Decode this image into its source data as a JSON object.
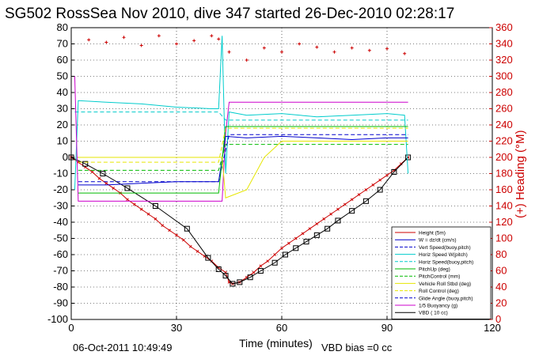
{
  "chart_data": {
    "type": "line",
    "title": "SG502 RossSea Nov 2010, dive 347 started 26-Dec-2010 02:28:17",
    "xlabel": "Time (minutes)",
    "ylabel": "",
    "ylabel_right": "(+) Heading (°M)",
    "xlim": [
      0,
      120
    ],
    "ylim": [
      -100,
      80
    ],
    "ylim_right": [
      0,
      360
    ],
    "xticks": [
      0,
      30,
      60,
      90,
      120
    ],
    "yticks": [
      -100,
      -90,
      -80,
      -70,
      -60,
      -50,
      -40,
      -30,
      -20,
      -10,
      0,
      10,
      20,
      30,
      40,
      50,
      60,
      70,
      80
    ],
    "yticks_right": [
      0,
      20,
      40,
      60,
      80,
      100,
      120,
      140,
      160,
      180,
      200,
      220,
      240,
      260,
      280,
      300,
      320,
      340,
      360
    ],
    "grid": true,
    "footer_date": "06-Oct-2011 10:49:49",
    "footer_bias": "VBD bias =0 cc",
    "legend": [
      {
        "label": "Height (5m)",
        "color": "#cc0000",
        "style": "solid"
      },
      {
        "label": "W = dz/dt (cm/s)",
        "color": "#0000cc",
        "style": "solid"
      },
      {
        "label": "Vert Speed(buoy,pitch)",
        "color": "#0000cc",
        "style": "dashed"
      },
      {
        "label": "Horiz Speed W(pitch)",
        "color": "#00cccc",
        "style": "solid"
      },
      {
        "label": "Horiz Speed(buoy,pitch)",
        "color": "#00cccc",
        "style": "dashed"
      },
      {
        "label": "PitchUp (deg)",
        "color": "#00bb00",
        "style": "solid"
      },
      {
        "label": "PitchControl (mm)",
        "color": "#00bb00",
        "style": "dashed"
      },
      {
        "label": "Vehicle Roll Stbd (deg)",
        "color": "#e6e600",
        "style": "solid"
      },
      {
        "label": "Roll Control (deg)",
        "color": "#e6e600",
        "style": "dashed"
      },
      {
        "label": "Glide Angle (buoy,pitch)",
        "color": "#0000cc",
        "style": "dashed"
      },
      {
        "label": "1/5 Buoyancy (g)",
        "color": "#cc00cc",
        "style": "solid"
      },
      {
        "label": "VBD ( 10 cc)",
        "color": "#000000",
        "style": "solid"
      }
    ],
    "series": [
      {
        "name": "Height (5m)",
        "color": "#cc0000",
        "marker": "x",
        "x": [
          0,
          2,
          4,
          6,
          8,
          10,
          12,
          14,
          16,
          18,
          20,
          22,
          24,
          26,
          28,
          30,
          32,
          34,
          36,
          38,
          40,
          42,
          44,
          45,
          46,
          48,
          50,
          52,
          54,
          56,
          58,
          60,
          62,
          64,
          66,
          68,
          70,
          72,
          74,
          76,
          78,
          80,
          82,
          84,
          86,
          88,
          90,
          92,
          94,
          96
        ],
        "values": [
          0,
          -3,
          -6,
          -9,
          -13,
          -16,
          -19,
          -22,
          -26,
          -29,
          -32,
          -35,
          -38,
          -42,
          -45,
          -48,
          -51,
          -55,
          -58,
          -61,
          -64,
          -68,
          -71,
          -77,
          -78,
          -77,
          -74,
          -71,
          -67,
          -64,
          -60,
          -56,
          -53,
          -50,
          -47,
          -44,
          -41,
          -38,
          -35,
          -32,
          -29,
          -26,
          -23,
          -20,
          -17,
          -14,
          -11,
          -8,
          -4,
          0
        ]
      },
      {
        "name": "VBD ( 10 cc)",
        "color": "#000000",
        "marker": "square",
        "x": [
          0,
          4,
          9,
          16,
          24,
          33,
          39,
          42,
          44,
          46,
          48,
          51,
          54,
          58,
          61,
          64,
          67,
          70,
          73,
          76,
          80,
          84,
          88,
          92,
          96
        ],
        "values": [
          0,
          -4,
          -10,
          -19,
          -30,
          -44,
          -62,
          -69,
          -73,
          -78,
          -77,
          -74,
          -70,
          -65,
          -60,
          -56,
          -52,
          -48,
          -44,
          -39,
          -33,
          -27,
          -20,
          -9,
          0
        ]
      },
      {
        "name": "Horiz Speed W(pitch)",
        "color": "#00cccc",
        "x": [
          1,
          2,
          10,
          20,
          30,
          40,
          42,
          43,
          44,
          45,
          50,
          60,
          70,
          80,
          90,
          95,
          96
        ],
        "values": [
          -20,
          35,
          34,
          33,
          31,
          30,
          30,
          75,
          -10,
          28,
          26,
          27,
          25,
          26,
          27,
          26,
          -10
        ]
      },
      {
        "name": "Horiz Speed(buoy,pitch)",
        "color": "#00cccc",
        "x": [
          1,
          42,
          44,
          96
        ],
        "values": [
          28,
          28,
          23,
          23
        ]
      },
      {
        "name": "1/5 Buoyancy (g)",
        "color": "#cc00cc",
        "x": [
          1,
          2,
          42,
          43,
          44,
          45,
          96
        ],
        "values": [
          50,
          -27,
          -27,
          -27,
          15,
          34,
          34
        ]
      },
      {
        "name": "Vert Speed(buoy,pitch)",
        "color": "#0000cc",
        "x": [
          2,
          42,
          45,
          96
        ],
        "values": [
          -15,
          -15,
          14,
          14
        ]
      },
      {
        "name": "W = dz/dt (cm/s)",
        "color": "#0000cc",
        "x": [
          2,
          10,
          20,
          30,
          42,
          44,
          50,
          60,
          70,
          80,
          90,
          96
        ],
        "values": [
          -17,
          -17,
          -16,
          -15,
          -15,
          13,
          12,
          13,
          12,
          11,
          12,
          12
        ]
      },
      {
        "name": "PitchUp (deg)",
        "color": "#00bb00",
        "x": [
          2,
          42,
          44,
          96
        ],
        "values": [
          -22,
          -22,
          19,
          19
        ]
      },
      {
        "name": "PitchControl (mm)",
        "color": "#00bb00",
        "x": [
          2,
          42,
          44,
          96
        ],
        "values": [
          -8,
          -8,
          8,
          8
        ]
      },
      {
        "name": "Vehicle Roll Stbd (deg)",
        "color": "#e6e600",
        "x": [
          2,
          10,
          20,
          30,
          40,
          43,
          44,
          50,
          55,
          60,
          70,
          80,
          90,
          96
        ],
        "values": [
          0,
          0,
          0,
          0,
          0,
          0,
          -25,
          -20,
          0,
          10,
          10,
          10,
          10,
          10
        ]
      },
      {
        "name": "Roll Control (deg)",
        "color": "#e6e600",
        "x": [
          2,
          42,
          44,
          96
        ],
        "values": [
          -3,
          -3,
          18,
          18
        ]
      },
      {
        "name": "Heading (°M)",
        "color": "#cc0000",
        "axis": "right",
        "marker": "plus",
        "x": [
          5,
          10,
          15,
          20,
          25,
          30,
          35,
          40,
          42,
          45,
          50,
          55,
          60,
          65,
          70,
          75,
          80,
          85,
          90,
          95
        ],
        "values": [
          345,
          342,
          348,
          338,
          350,
          340,
          344,
          350,
          346,
          330,
          320,
          335,
          330,
          340,
          336,
          330,
          335,
          332,
          334,
          328
        ]
      }
    ]
  }
}
